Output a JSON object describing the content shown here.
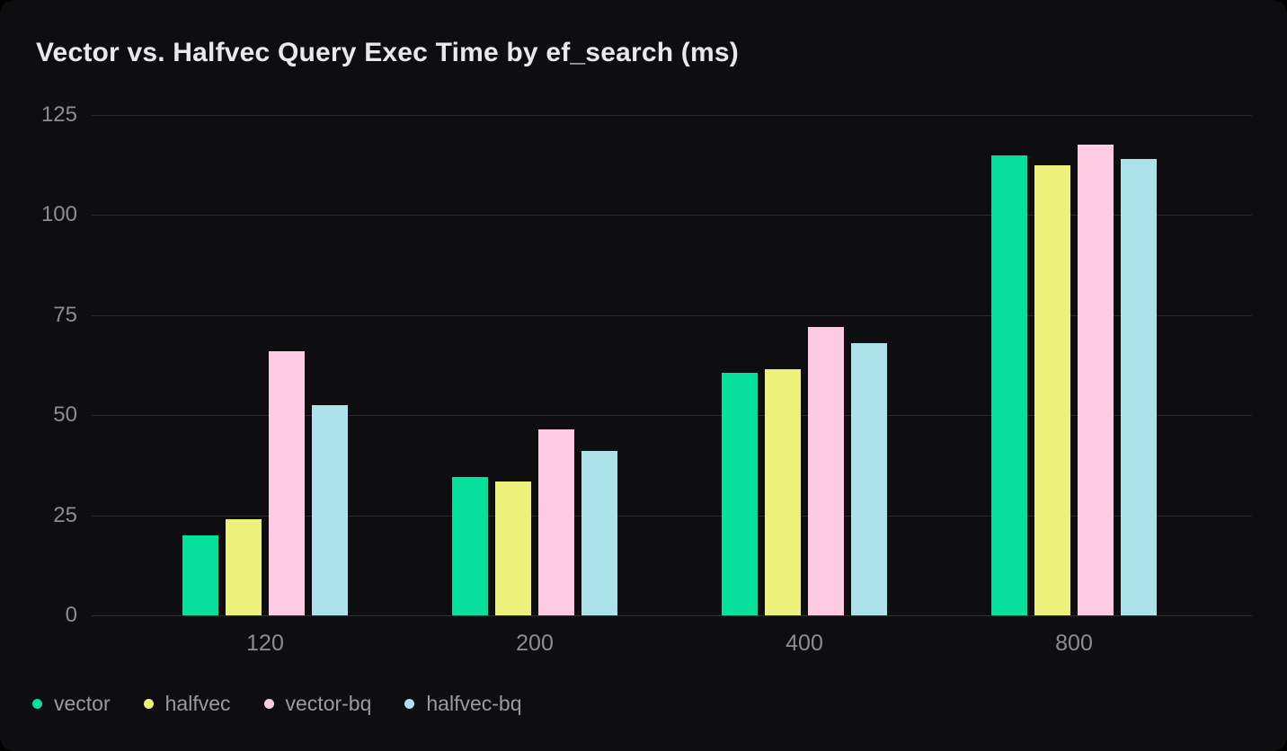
{
  "chart_data": {
    "type": "bar",
    "title": "Vector vs. Halfvec Query Exec Time by ef_search (ms)",
    "xlabel": "",
    "ylabel": "",
    "categories": [
      "120",
      "200",
      "400",
      "800"
    ],
    "series": [
      {
        "name": "vector",
        "color": "#07e09c",
        "values": [
          20,
          34.5,
          60.5,
          115
        ]
      },
      {
        "name": "halfvec",
        "color": "#edf17c",
        "values": [
          24,
          33.5,
          61.5,
          112.5
        ]
      },
      {
        "name": "vector-bq",
        "color": "#ffcbe2",
        "values": [
          66,
          46.5,
          72,
          117.5
        ]
      },
      {
        "name": "halfvec-bq",
        "color": "#aee2eb",
        "values": [
          52.5,
          41,
          68,
          114
        ]
      }
    ],
    "ylim": [
      0,
      125
    ],
    "yticks": [
      0,
      25,
      50,
      75,
      100,
      125
    ],
    "grid": true,
    "legend_position": "bottom-left"
  },
  "theme": {
    "outer_background": "#000000",
    "card_background": "#0e0e10",
    "grid_color": "#29292d",
    "baseline_color": "#303034",
    "title_color": "#e9e9eb",
    "tick_label_color": "#8b8d94",
    "legend_label_color": "#999ba2"
  }
}
